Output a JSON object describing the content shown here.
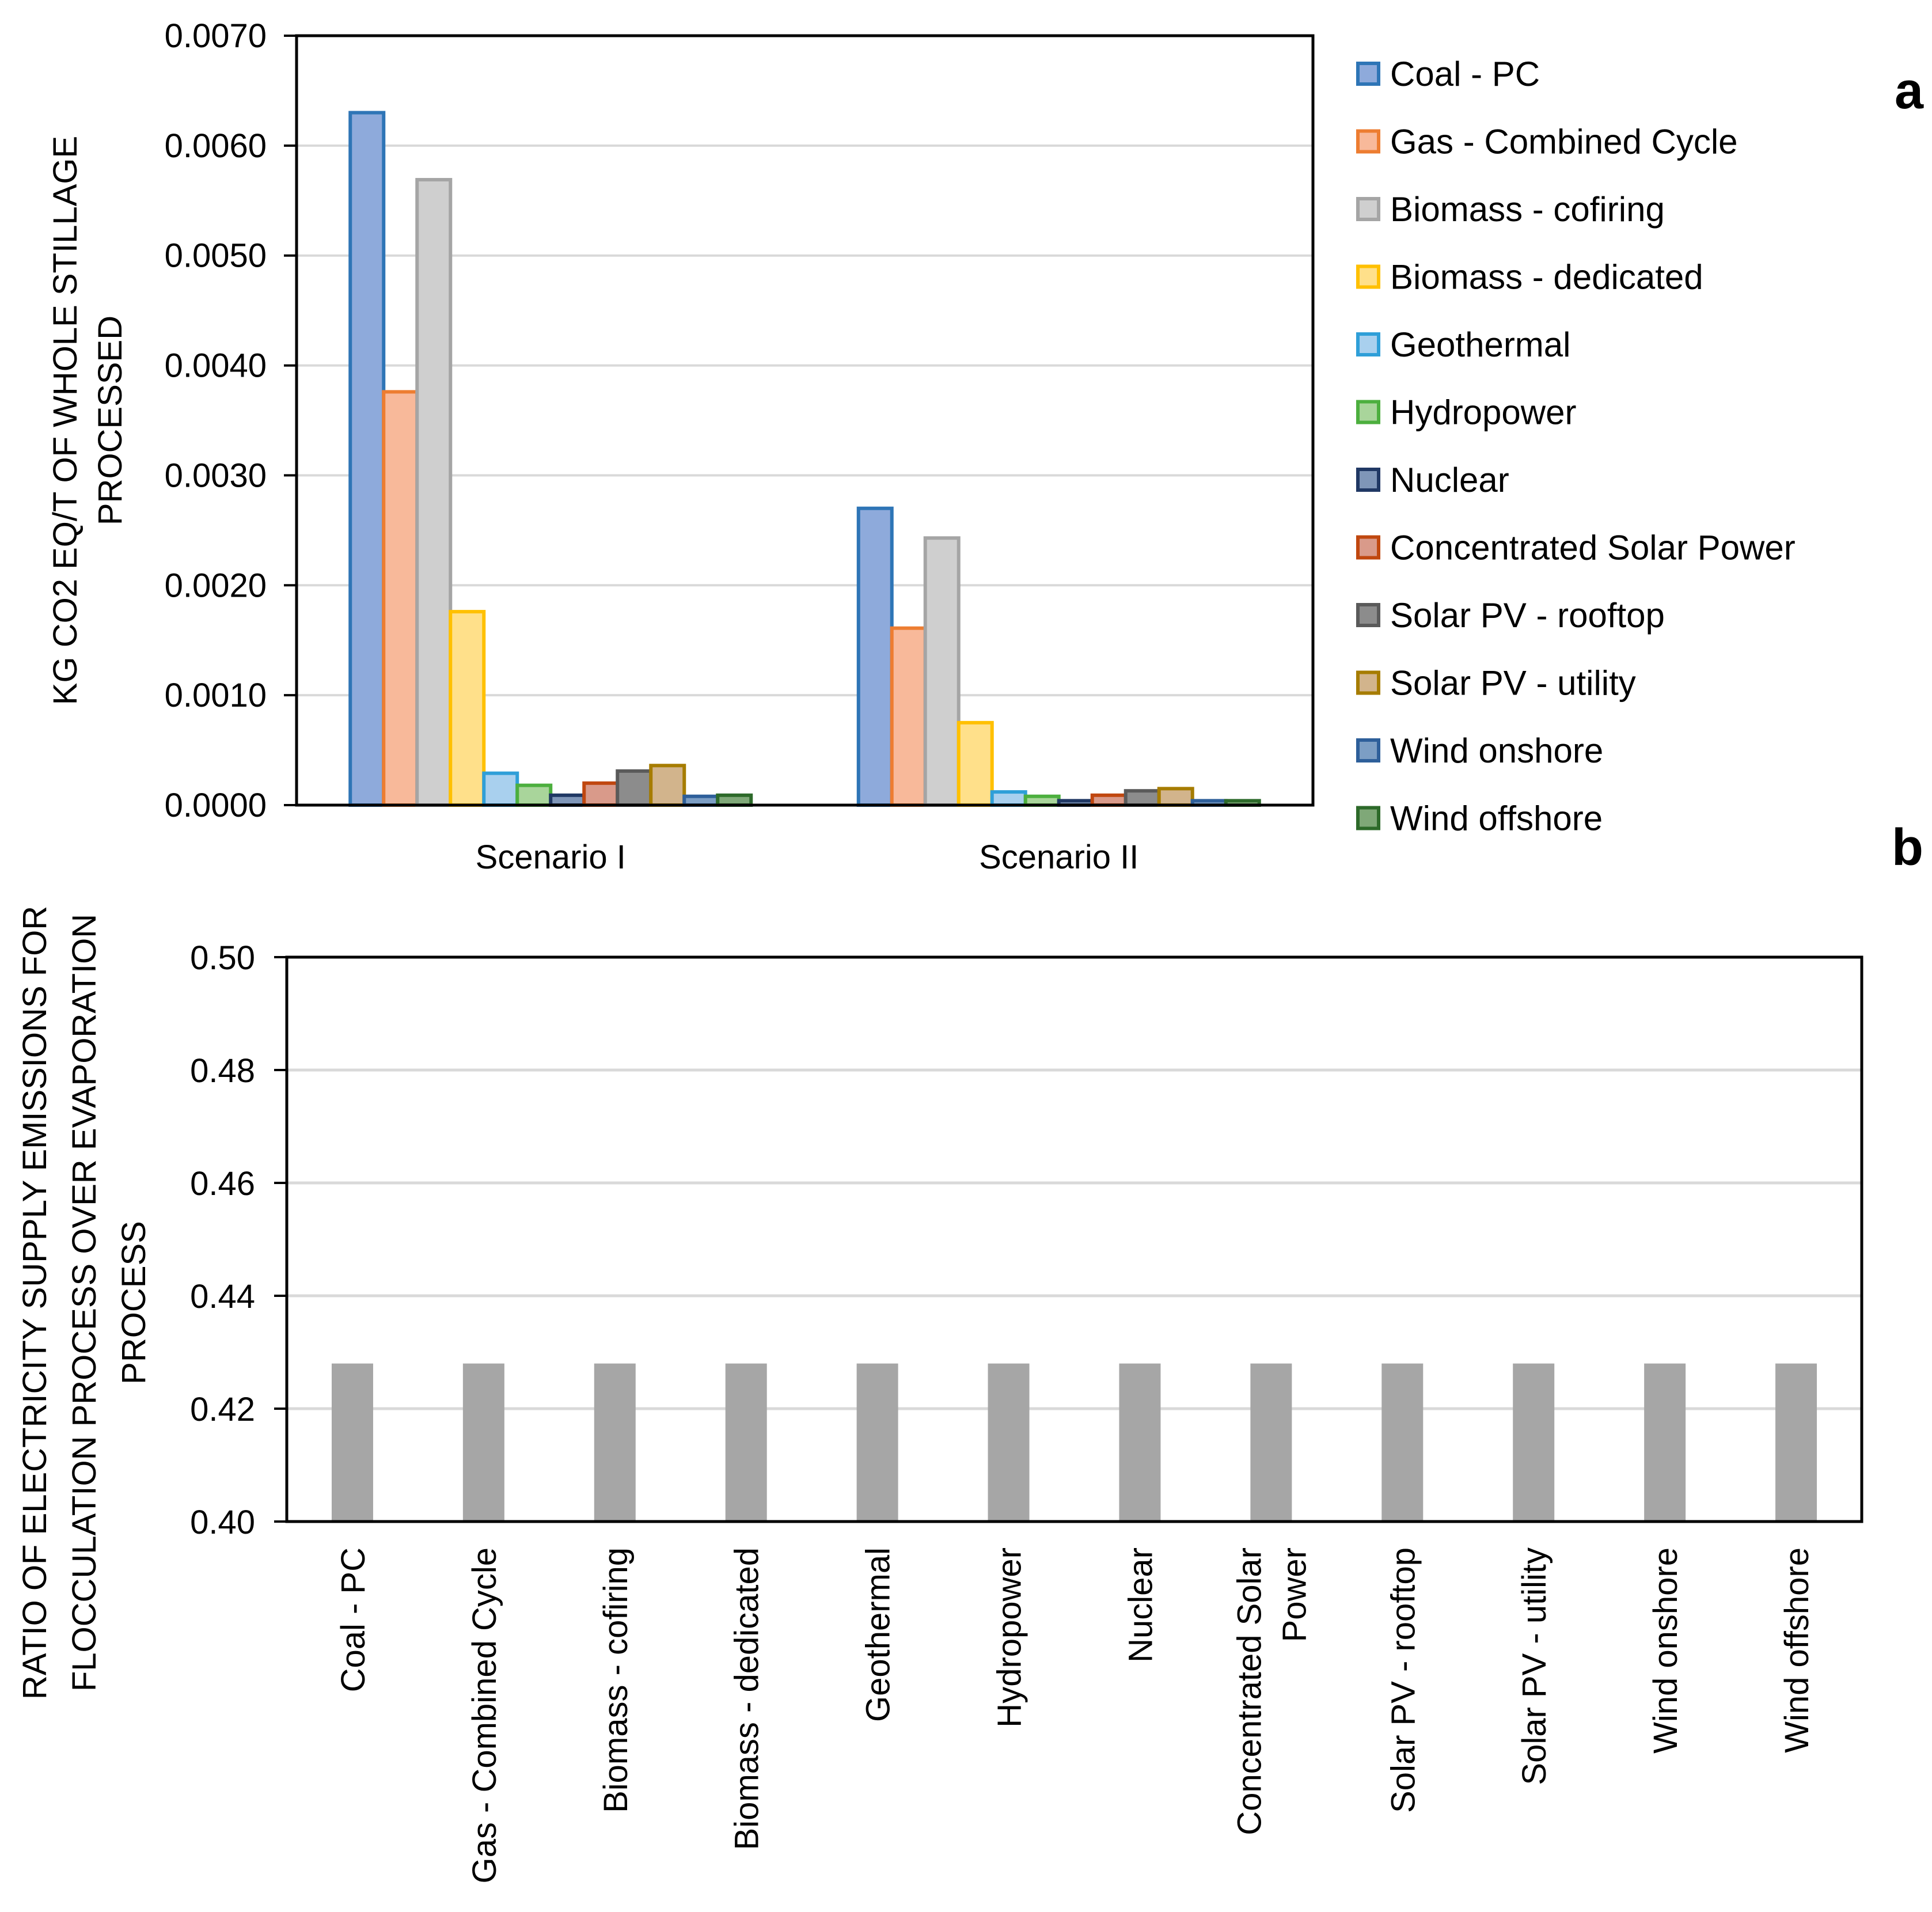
{
  "colors": {
    "Coal - PC": {
      "fill": "#8eaadb",
      "stroke": "#2e75b6"
    },
    "Gas - Combined Cycle": {
      "fill": "#f8b99a",
      "stroke": "#ed7d31"
    },
    "Biomass - cofiring": {
      "fill": "#cfcfcf",
      "stroke": "#a5a5a5"
    },
    "Biomass - dedicated": {
      "fill": "#ffe08a",
      "stroke": "#ffc000"
    },
    "Geothermal": {
      "fill": "#a9d0ee",
      "stroke": "#2f9fd8"
    },
    "Hydropower": {
      "fill": "#a9d59b",
      "stroke": "#4caf3e"
    },
    "Nuclear": {
      "fill": "#7f96b8",
      "stroke": "#203864"
    },
    "Concentrated Solar Power": {
      "fill": "#d99a8a",
      "stroke": "#c0470f"
    },
    "Solar PV - rooftop": {
      "fill": "#8c8c8c",
      "stroke": "#5a5a5a"
    },
    "Solar PV - utility": {
      "fill": "#d2b48c",
      "stroke": "#a67c00"
    },
    "Wind onshore": {
      "fill": "#7c9ec4",
      "stroke": "#2e5f9a"
    },
    "Wind offshore": {
      "fill": "#7fa878",
      "stroke": "#2d6a2a"
    },
    "panel_b_bar": "#a6a6a6",
    "grid": "#d9d9d9"
  },
  "chart_data": [
    {
      "panel": "a",
      "type": "bar",
      "ylabel_lines": [
        "KG CO2 EQ/T OF WHOLE STILLAGE",
        "PROCESSED"
      ],
      "categories": [
        "Scenario I",
        "Scenario II"
      ],
      "ylim": [
        0,
        0.007
      ],
      "yticks": [
        0,
        0.001,
        0.002,
        0.003,
        0.004,
        0.005,
        0.006,
        0.007
      ],
      "ytick_labels": [
        "0.0000",
        "0.0010",
        "0.0020",
        "0.0030",
        "0.0040",
        "0.0050",
        "0.0060",
        "0.0070"
      ],
      "grid": true,
      "legend_position": "right",
      "series": [
        {
          "name": "Coal - PC",
          "values": [
            0.0063,
            0.0027
          ]
        },
        {
          "name": "Gas - Combined Cycle",
          "values": [
            0.00376,
            0.00161
          ]
        },
        {
          "name": "Biomass - cofiring",
          "values": [
            0.00569,
            0.00243
          ]
        },
        {
          "name": "Biomass - dedicated",
          "values": [
            0.00176,
            0.00075
          ]
        },
        {
          "name": "Geothermal",
          "values": [
            0.00029,
            0.00012
          ]
        },
        {
          "name": "Hydropower",
          "values": [
            0.00018,
            8e-05
          ]
        },
        {
          "name": "Nuclear",
          "values": [
            9e-05,
            4e-05
          ]
        },
        {
          "name": "Concentrated Solar Power",
          "values": [
            0.0002,
            9e-05
          ]
        },
        {
          "name": "Solar PV - rooftop",
          "values": [
            0.00031,
            0.00013
          ]
        },
        {
          "name": "Solar PV - utility",
          "values": [
            0.00036,
            0.00015
          ]
        },
        {
          "name": "Wind onshore",
          "values": [
            8e-05,
            4e-05
          ]
        },
        {
          "name": "Wind offshore",
          "values": [
            9e-05,
            4e-05
          ]
        }
      ]
    },
    {
      "panel": "b",
      "type": "bar",
      "ylabel_lines": [
        "RATIO OF ELECTRICITY SUPPLY EMISSIONS FOR",
        "FLOCCULATION PROCESS OVER EVAPORATION",
        "PROCESS"
      ],
      "categories": [
        "Coal - PC",
        "Gas - Combined Cycle",
        "Biomass - cofiring",
        "Biomass - dedicated",
        "Geothermal",
        "Hydropower",
        "Nuclear",
        "Concentrated Solar Power",
        "Solar PV - rooftop",
        "Solar PV - utility",
        "Wind onshore",
        "Wind offshore"
      ],
      "category_label_lines": [
        [
          "Coal - PC"
        ],
        [
          "Gas - Combined Cycle"
        ],
        [
          "Biomass - cofiring"
        ],
        [
          "Biomass - dedicated"
        ],
        [
          "Geothermal"
        ],
        [
          "Hydropower"
        ],
        [
          "Nuclear"
        ],
        [
          "Concentrated Solar",
          "Power"
        ],
        [
          "Solar PV - rooftop"
        ],
        [
          "Solar PV - utility"
        ],
        [
          "Wind onshore"
        ],
        [
          "Wind offshore"
        ]
      ],
      "values": [
        0.428,
        0.428,
        0.428,
        0.428,
        0.428,
        0.428,
        0.428,
        0.428,
        0.428,
        0.428,
        0.428,
        0.428
      ],
      "ylim": [
        0.4,
        0.5
      ],
      "yticks": [
        0.4,
        0.42,
        0.44,
        0.46,
        0.48,
        0.5
      ],
      "ytick_labels": [
        "0.40",
        "0.42",
        "0.44",
        "0.46",
        "0.48",
        "0.50"
      ],
      "grid": true
    }
  ]
}
